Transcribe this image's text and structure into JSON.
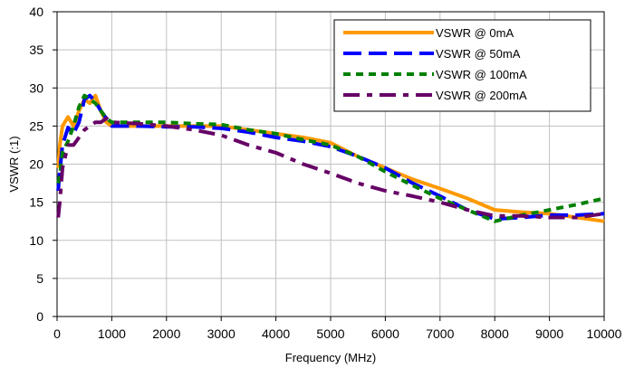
{
  "chart_data": {
    "type": "line",
    "xlabel": "Frequency (MHz)",
    "ylabel": "VSWR (:1)",
    "xlim": [
      0,
      10000
    ],
    "ylim": [
      0,
      40
    ],
    "xticks": [
      0,
      1000,
      2000,
      3000,
      4000,
      5000,
      6000,
      7000,
      8000,
      9000,
      10000
    ],
    "yticks": [
      0,
      5,
      10,
      15,
      20,
      25,
      30,
      35,
      40
    ],
    "grid": "both",
    "legend_position": "top-right",
    "series": [
      {
        "name": "VSWR @ 0mA",
        "color": "#FF9900",
        "dash": "solid",
        "x": [
          20,
          50,
          100,
          200,
          300,
          400,
          500,
          600,
          700,
          800,
          900,
          1000,
          1500,
          2000,
          2500,
          3000,
          3500,
          4000,
          4500,
          5000,
          5500,
          6000,
          6500,
          7000,
          7500,
          8000,
          8500,
          9000,
          9500,
          10000
        ],
        "y": [
          19.5,
          22.5,
          25.0,
          26.2,
          25.0,
          27.0,
          28.5,
          28.0,
          29.0,
          27.0,
          25.5,
          25.0,
          25.0,
          25.0,
          25.0,
          25.0,
          24.5,
          24.0,
          23.5,
          22.8,
          21.0,
          19.5,
          18.0,
          16.8,
          15.5,
          14.0,
          13.7,
          13.5,
          13.0,
          12.5
        ]
      },
      {
        "name": "VSWR @ 50mA",
        "color": "#0000FF",
        "dash": "long-dash",
        "x": [
          20,
          50,
          100,
          200,
          300,
          400,
          500,
          600,
          700,
          800,
          900,
          1000,
          1500,
          2000,
          2500,
          3000,
          3500,
          4000,
          4500,
          5000,
          5500,
          6000,
          6500,
          7000,
          7500,
          8000,
          8500,
          9000,
          9500,
          10000
        ],
        "y": [
          16.5,
          19.0,
          22.5,
          24.8,
          24.0,
          25.5,
          28.5,
          29.0,
          28.2,
          27.0,
          26.0,
          25.0,
          25.0,
          24.9,
          24.9,
          24.7,
          24.2,
          23.5,
          23.0,
          22.3,
          21.0,
          19.5,
          17.5,
          15.8,
          14.0,
          12.8,
          13.0,
          13.3,
          13.3,
          13.5
        ]
      },
      {
        "name": "VSWR @ 100mA",
        "color": "#008000",
        "dash": "short-dash",
        "x": [
          20,
          50,
          100,
          200,
          300,
          400,
          500,
          600,
          700,
          800,
          900,
          1000,
          1500,
          2000,
          2500,
          3000,
          3500,
          4000,
          4500,
          5000,
          5500,
          6000,
          6500,
          7000,
          7500,
          8000,
          8500,
          9000,
          9500,
          10000
        ],
        "y": [
          17.5,
          18.5,
          21.5,
          23.0,
          25.0,
          27.5,
          29.0,
          28.5,
          28.0,
          27.0,
          26.0,
          25.5,
          25.5,
          25.5,
          25.3,
          25.2,
          24.5,
          24.0,
          23.2,
          22.5,
          21.0,
          19.0,
          17.2,
          15.5,
          14.0,
          12.5,
          13.3,
          14.0,
          14.7,
          15.5
        ]
      },
      {
        "name": "VSWR @ 200mA",
        "color": "#660066",
        "dash": "dash-dot",
        "x": [
          20,
          50,
          100,
          200,
          300,
          400,
          500,
          600,
          700,
          800,
          900,
          1000,
          1500,
          2000,
          2500,
          3000,
          3500,
          4000,
          4500,
          5000,
          5500,
          6000,
          6500,
          7000,
          7500,
          8000,
          8500,
          9000,
          9500,
          10000
        ],
        "y": [
          13.0,
          15.0,
          19.5,
          22.5,
          22.5,
          23.5,
          24.5,
          25.0,
          25.5,
          25.5,
          26.0,
          25.5,
          25.3,
          25.0,
          24.5,
          23.8,
          22.5,
          21.5,
          20.0,
          18.8,
          17.5,
          16.5,
          15.8,
          15.0,
          14.0,
          13.2,
          13.2,
          13.0,
          13.0,
          13.5
        ]
      }
    ]
  }
}
